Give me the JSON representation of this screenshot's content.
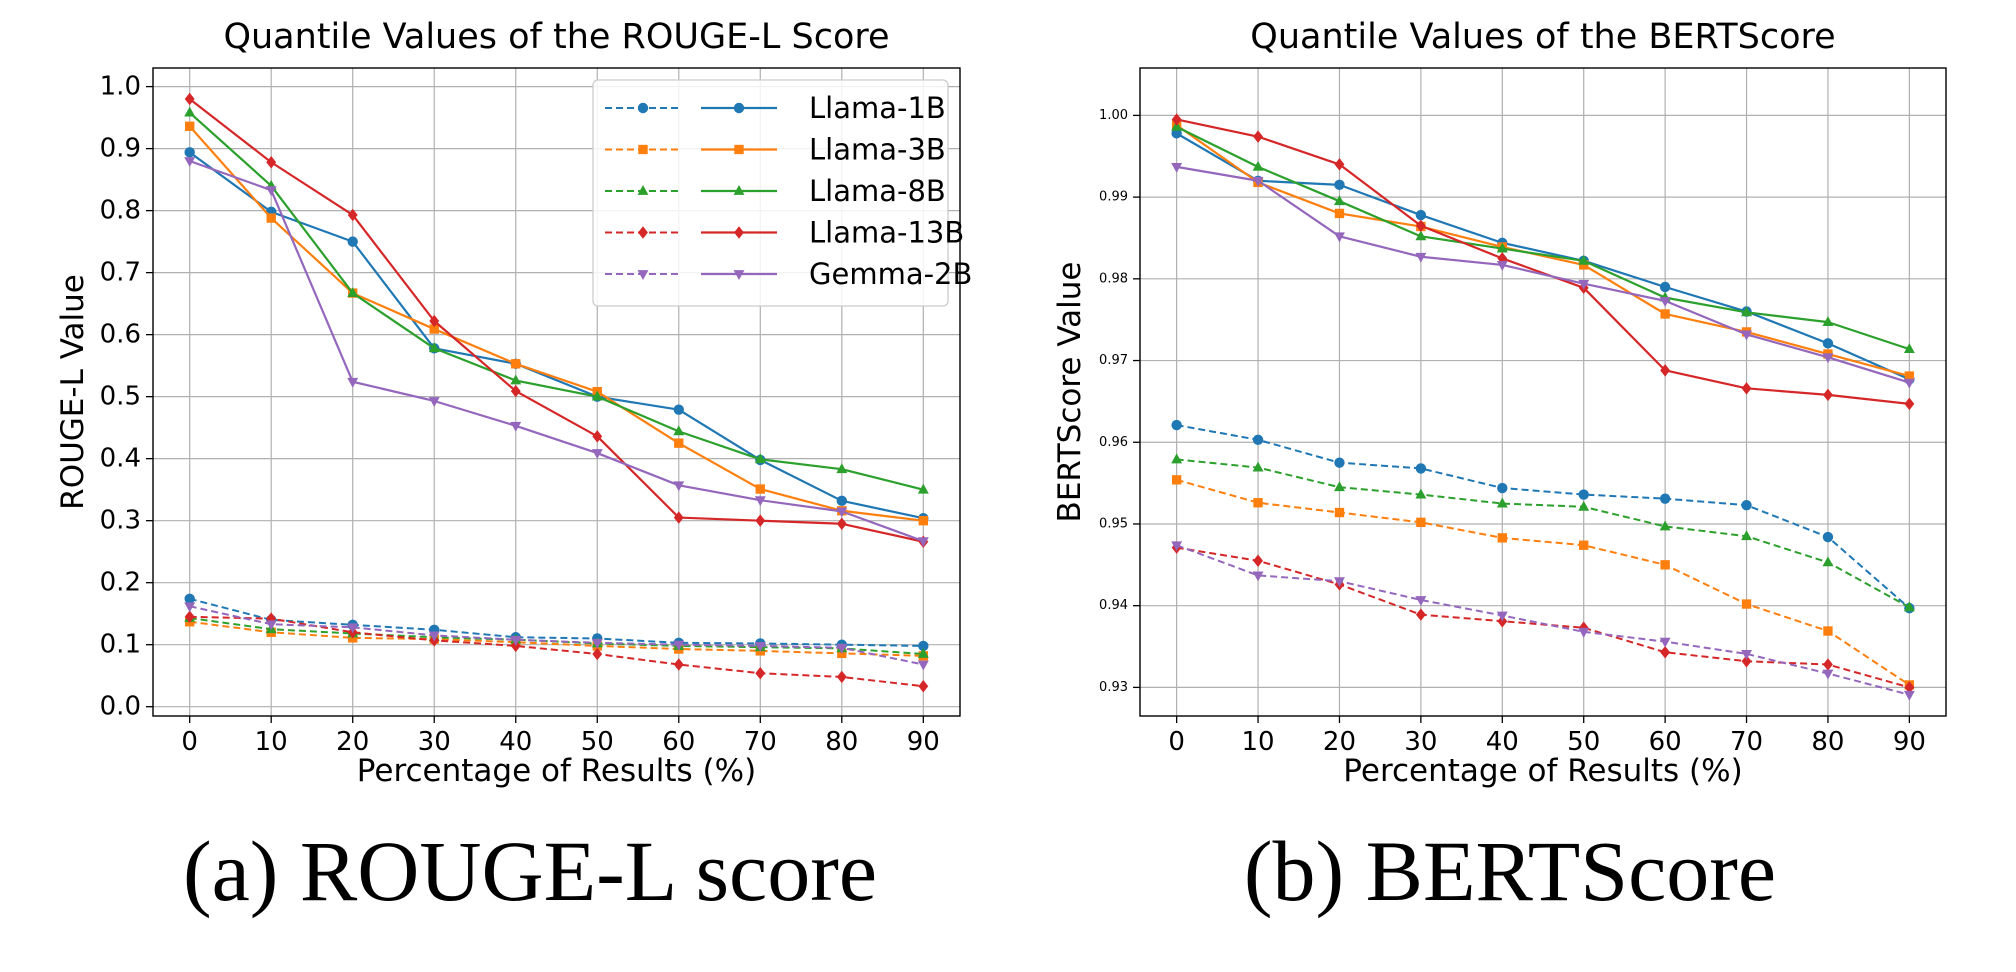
{
  "captions": {
    "a": "(a) ROUGE-L score",
    "b": "(b) BERTScore"
  },
  "series_colors": {
    "Llama-1B": "#1f77b4",
    "Llama-3B": "#ff7f0e",
    "Llama-8B": "#2ca02c",
    "Llama-13B": "#d62728",
    "Gemma-2B": "#9467bd"
  },
  "series_markers": {
    "Llama-1B": "circle",
    "Llama-3B": "square",
    "Llama-8B": "triangle-up",
    "Llama-13B": "diamond",
    "Gemma-2B": "triangle-down"
  },
  "chart_data": [
    {
      "type": "line",
      "title": "Quantile Values of the ROUGE-L Score",
      "xlabel": "Percentage of Results (%)",
      "ylabel": "ROUGE-L Value",
      "x": [
        0,
        10,
        20,
        30,
        40,
        50,
        60,
        70,
        80,
        90
      ],
      "xlim": [
        -4.5,
        94.5
      ],
      "ylim": [
        -0.015,
        1.03
      ],
      "yticks": [
        0.0,
        0.1,
        0.2,
        0.3,
        0.4,
        0.5,
        0.6,
        0.7,
        0.8,
        0.9,
        1.0
      ],
      "ytick_labels": [
        "0.0",
        "0.1",
        "0.2",
        "0.3",
        "0.4",
        "0.5",
        "0.6",
        "0.7",
        "0.8",
        "0.9",
        "1.0"
      ],
      "grid": true,
      "legend": "top-right",
      "series": [
        {
          "name": "Llama-1B",
          "variant": "dashed",
          "values": [
            0.174,
            0.14,
            0.132,
            0.124,
            0.112,
            0.11,
            0.103,
            0.102,
            0.1,
            0.098
          ]
        },
        {
          "name": "Llama-3B",
          "variant": "dashed",
          "values": [
            0.137,
            0.12,
            0.111,
            0.109,
            0.104,
            0.098,
            0.093,
            0.09,
            0.086,
            0.082
          ]
        },
        {
          "name": "Llama-8B",
          "variant": "dashed",
          "values": [
            0.143,
            0.125,
            0.118,
            0.112,
            0.108,
            0.102,
            0.098,
            0.096,
            0.094,
            0.085
          ]
        },
        {
          "name": "Llama-13B",
          "variant": "dashed",
          "values": [
            0.145,
            0.142,
            0.12,
            0.107,
            0.098,
            0.085,
            0.068,
            0.054,
            0.048,
            0.033
          ]
        },
        {
          "name": "Gemma-2B",
          "variant": "dashed",
          "values": [
            0.162,
            0.133,
            0.128,
            0.115,
            0.108,
            0.103,
            0.1,
            0.098,
            0.095,
            0.068
          ]
        },
        {
          "name": "Llama-1B",
          "variant": "solid",
          "values": [
            0.894,
            0.798,
            0.75,
            0.578,
            0.553,
            0.5,
            0.479,
            0.398,
            0.332,
            0.304
          ]
        },
        {
          "name": "Llama-3B",
          "variant": "solid",
          "values": [
            0.936,
            0.788,
            0.667,
            0.609,
            0.553,
            0.508,
            0.425,
            0.351,
            0.316,
            0.3
          ]
        },
        {
          "name": "Llama-8B",
          "variant": "solid",
          "values": [
            0.958,
            0.84,
            0.667,
            0.578,
            0.526,
            0.5,
            0.444,
            0.399,
            0.383,
            0.35
          ]
        },
        {
          "name": "Llama-13B",
          "variant": "solid",
          "values": [
            0.98,
            0.878,
            0.793,
            0.622,
            0.509,
            0.436,
            0.305,
            0.3,
            0.295,
            0.266
          ]
        },
        {
          "name": "Gemma-2B",
          "variant": "solid",
          "values": [
            0.88,
            0.833,
            0.524,
            0.493,
            0.453,
            0.409,
            0.357,
            0.333,
            0.315,
            0.267
          ]
        }
      ]
    },
    {
      "type": "line",
      "title": "Quantile Values of the BERTScore",
      "xlabel": "Percentage of Results (%)",
      "ylabel": "BERTScore Value",
      "x": [
        0,
        10,
        20,
        30,
        40,
        50,
        60,
        70,
        80,
        90
      ],
      "xlim": [
        -4.5,
        94.5
      ],
      "ylim": [
        0.9265,
        1.0058
      ],
      "yticks": [
        0.93,
        0.94,
        0.95,
        0.96,
        0.97,
        0.98,
        0.99,
        1.0
      ],
      "ytick_labels": [
        "0.93",
        "0.94",
        "0.95",
        "0.96",
        "0.97",
        "0.98",
        "0.99",
        "1.00"
      ],
      "grid": true,
      "legend": "none",
      "series": [
        {
          "name": "Llama-1B",
          "variant": "dashed",
          "values": [
            0.9621,
            0.9603,
            0.9575,
            0.9568,
            0.9544,
            0.9536,
            0.9531,
            0.9523,
            0.9484,
            0.9397
          ]
        },
        {
          "name": "Llama-3B",
          "variant": "dashed",
          "values": [
            0.9554,
            0.9526,
            0.9514,
            0.9502,
            0.9483,
            0.9474,
            0.945,
            0.9402,
            0.9369,
            0.9303
          ]
        },
        {
          "name": "Llama-8B",
          "variant": "dashed",
          "values": [
            0.9579,
            0.9569,
            0.9545,
            0.9536,
            0.9525,
            0.9521,
            0.9497,
            0.9485,
            0.9453,
            0.9398
          ]
        },
        {
          "name": "Llama-13B",
          "variant": "dashed",
          "values": [
            0.9471,
            0.9455,
            0.9426,
            0.9389,
            0.9381,
            0.9373,
            0.9343,
            0.9332,
            0.9328,
            0.93
          ]
        },
        {
          "name": "Gemma-2B",
          "variant": "dashed",
          "values": [
            0.9474,
            0.9437,
            0.943,
            0.9407,
            0.9388,
            0.9368,
            0.9356,
            0.9341,
            0.9317,
            0.9291
          ]
        },
        {
          "name": "Llama-1B",
          "variant": "solid",
          "values": [
            0.9978,
            0.992,
            0.9915,
            0.9878,
            0.9844,
            0.9822,
            0.979,
            0.976,
            0.9721,
            0.9677
          ]
        },
        {
          "name": "Llama-3B",
          "variant": "solid",
          "values": [
            0.9988,
            0.9918,
            0.988,
            0.9864,
            0.9839,
            0.9817,
            0.9757,
            0.9735,
            0.9708,
            0.9681
          ]
        },
        {
          "name": "Llama-8B",
          "variant": "solid",
          "values": [
            0.9986,
            0.9937,
            0.9895,
            0.9852,
            0.9837,
            0.9822,
            0.9777,
            0.9759,
            0.9747,
            0.9714
          ]
        },
        {
          "name": "Llama-13B",
          "variant": "solid",
          "values": [
            0.9995,
            0.9974,
            0.994,
            0.9865,
            0.9825,
            0.9789,
            0.9688,
            0.9666,
            0.9658,
            0.9647
          ]
        },
        {
          "name": "Gemma-2B",
          "variant": "solid",
          "values": [
            0.9937,
            0.992,
            0.9852,
            0.9827,
            0.9817,
            0.9794,
            0.9773,
            0.9732,
            0.9704,
            0.9673
          ]
        }
      ]
    }
  ]
}
